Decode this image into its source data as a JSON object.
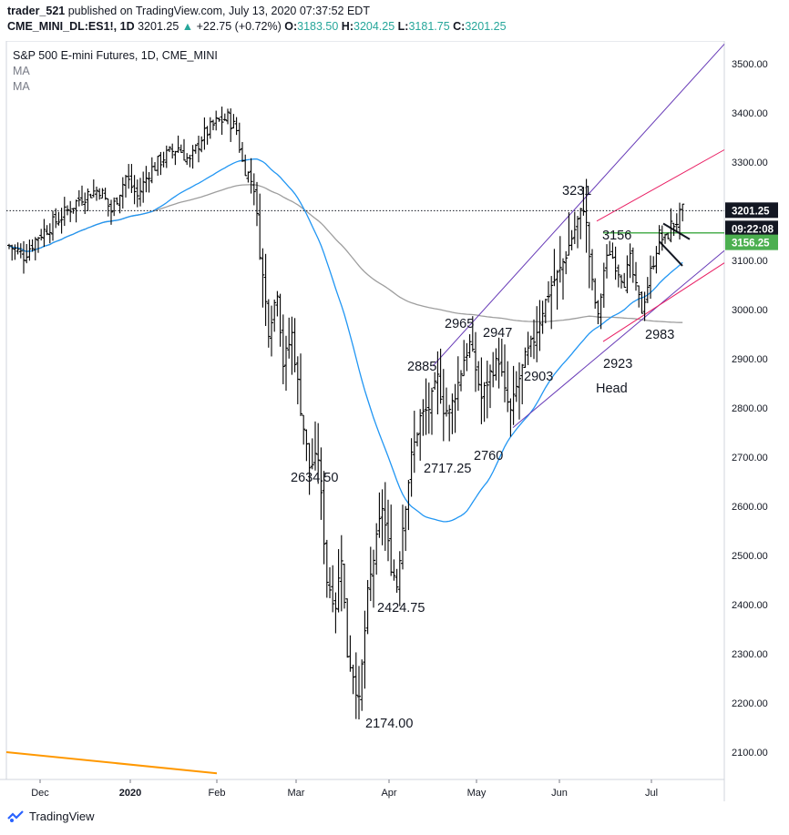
{
  "header": {
    "publisher": "trader_521",
    "published_text": "published on TradingView.com, July 13, 2020 07:37:52 EDT",
    "symbol": "CME_MINI_DL:ES1!, 1D",
    "last": "3201.25",
    "change": "+22.75 (+0.72%)",
    "open_label": "O:",
    "open": "3183.50",
    "high_label": "H:",
    "high": "3204.25",
    "low_label": "L:",
    "low": "3181.75",
    "close_label": "C:",
    "close": "3201.25"
  },
  "legend": {
    "title": "S&P 500 E-mini Futures, 1D, CME_MINI",
    "ma1": "MA",
    "ma2": "MA"
  },
  "price_badges": {
    "last": "3201.25",
    "countdown": "09:22:08",
    "level": "3156.25"
  },
  "footer": {
    "brand": "TradingView"
  },
  "colors": {
    "bars": "#000000",
    "ma_fast": "#2196f3",
    "ma_slow": "#9e9e9e",
    "channel": "#673ab7",
    "red_line": "#e91e63",
    "green_line": "#4caf50",
    "orange_line": "#ff9800"
  },
  "chart_data": {
    "type": "ohlc-bar",
    "title": "S&P 500 E-mini Futures, 1D, CME_MINI",
    "y_ticks": [
      2100,
      2200,
      2300,
      2400,
      2500,
      2600,
      2700,
      2800,
      2900,
      3000,
      3100,
      3200,
      3300,
      3400,
      3500
    ],
    "ylim": [
      2050,
      3550
    ],
    "x_ticks": [
      "Dec",
      "2020",
      "Feb",
      "Mar",
      "Apr",
      "May",
      "Jun",
      "Jul"
    ],
    "annotations": [
      {
        "text": "2634.50",
        "price": 2634.5
      },
      {
        "text": "2174.00",
        "price": 2174
      },
      {
        "text": "2424.75",
        "price": 2424.75
      },
      {
        "text": "2717.25",
        "price": 2717.25
      },
      {
        "text": "2885",
        "price": 2885
      },
      {
        "text": "2965",
        "price": 2965
      },
      {
        "text": "2947",
        "price": 2947
      },
      {
        "text": "2760",
        "price": 2760
      },
      {
        "text": "2903",
        "price": 2903
      },
      {
        "text": "3231",
        "price": 3231
      },
      {
        "text": "3156",
        "price": 3156
      },
      {
        "text": "2923",
        "price": 2923
      },
      {
        "text": "Head",
        "price": null
      },
      {
        "text": "2983",
        "price": 2983
      }
    ],
    "pivots": [
      [
        0,
        3130
      ],
      [
        5,
        3110
      ],
      [
        10,
        3150
      ],
      [
        18,
        3190
      ],
      [
        25,
        3230
      ],
      [
        31,
        3245
      ],
      [
        35,
        3200
      ],
      [
        40,
        3270
      ],
      [
        44,
        3230
      ],
      [
        48,
        3280
      ],
      [
        53,
        3310
      ],
      [
        58,
        3330
      ],
      [
        62,
        3300
      ],
      [
        66,
        3350
      ],
      [
        71,
        3380
      ],
      [
        75,
        3390
      ],
      [
        78,
        3365
      ],
      [
        80,
        3300
      ],
      [
        84,
        3250
      ],
      [
        86,
        3120
      ],
      [
        89,
        2960
      ],
      [
        92,
        3040
      ],
      [
        94,
        2890
      ],
      [
        97,
        2950
      ],
      [
        100,
        2800
      ],
      [
        103,
        2680
      ],
      [
        106,
        2700
      ],
      [
        109,
        2450
      ],
      [
        112,
        2400
      ],
      [
        114,
        2500
      ],
      [
        116,
        2300
      ],
      [
        118,
        2260
      ],
      [
        120,
        2200
      ],
      [
        123,
        2420
      ],
      [
        126,
        2530
      ],
      [
        128,
        2600
      ],
      [
        131,
        2480
      ],
      [
        133,
        2440
      ],
      [
        135,
        2560
      ],
      [
        138,
        2700
      ],
      [
        141,
        2780
      ],
      [
        144,
        2800
      ],
      [
        147,
        2860
      ],
      [
        149,
        2800
      ],
      [
        151,
        2790
      ],
      [
        154,
        2850
      ],
      [
        156,
        2900
      ],
      [
        158,
        2930
      ],
      [
        160,
        2880
      ],
      [
        162,
        2820
      ],
      [
        165,
        2870
      ],
      [
        168,
        2900
      ],
      [
        170,
        2830
      ],
      [
        172,
        2790
      ],
      [
        174,
        2840
      ],
      [
        177,
        2900
      ],
      [
        180,
        2940
      ],
      [
        183,
        3000
      ],
      [
        186,
        3050
      ],
      [
        189,
        3080
      ],
      [
        192,
        3130
      ],
      [
        195,
        3180
      ],
      [
        197,
        3210
      ],
      [
        198,
        3170
      ],
      [
        200,
        3050
      ],
      [
        202,
        2980
      ],
      [
        204,
        3080
      ],
      [
        206,
        3120
      ],
      [
        209,
        3080
      ],
      [
        211,
        3060
      ],
      [
        213,
        3100
      ],
      [
        215,
        3040
      ],
      [
        217,
        3000
      ],
      [
        219,
        3050
      ],
      [
        221,
        3100
      ],
      [
        223,
        3150
      ],
      [
        225,
        3140
      ],
      [
        227,
        3170
      ],
      [
        229,
        3180
      ],
      [
        231,
        3200
      ]
    ]
  }
}
